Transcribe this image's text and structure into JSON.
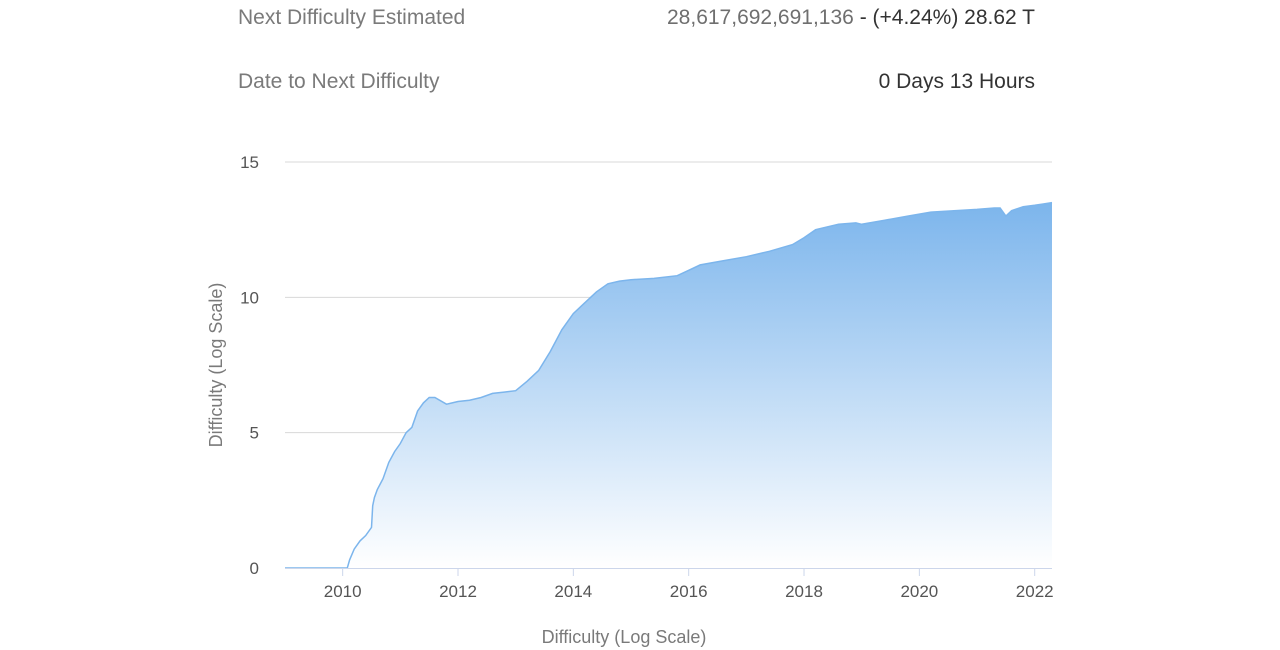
{
  "stats": {
    "next_difficulty_label": "Next Difficulty Estimated",
    "next_difficulty_value": "28,617,692,691,136",
    "next_difficulty_sep": " - ",
    "next_difficulty_change": "(+4.24%) 28.62 T",
    "date_label": "Date to Next Difficulty",
    "date_value": "0 Days 13 Hours"
  },
  "colors": {
    "area_top": "#7cb5ec",
    "area_bottom": "#ffffff",
    "line": "#7cb5ec",
    "grid": "#d8d8d8"
  },
  "chart_data": {
    "type": "area",
    "title": "",
    "xlabel": "Difficulty (Log Scale)",
    "ylabel": "Difficulty (Log Scale)",
    "xlim": [
      2009.0,
      2022.3
    ],
    "ylim": [
      0,
      15
    ],
    "x_ticks": [
      "2010",
      "2012",
      "2014",
      "2016",
      "2018",
      "2020",
      "2022"
    ],
    "y_ticks": [
      "0",
      "5",
      "10",
      "15"
    ],
    "grid": true,
    "legend": "none",
    "series": [
      {
        "x": [
          2009.0,
          2009.5,
          2010.08,
          2010.12,
          2010.2,
          2010.3,
          2010.4,
          2010.5,
          2010.52,
          2010.55,
          2010.6,
          2010.7,
          2010.8,
          2010.9,
          2011.0,
          2011.1,
          2011.2,
          2011.3,
          2011.4,
          2011.5,
          2011.6,
          2011.8,
          2011.9,
          2012.0,
          2012.2,
          2012.4,
          2012.6,
          2012.8,
          2013.0,
          2013.2,
          2013.4,
          2013.6,
          2013.8,
          2014.0,
          2014.2,
          2014.4,
          2014.6,
          2014.8,
          2015.0,
          2015.4,
          2015.8,
          2016.0,
          2016.2,
          2016.6,
          2017.0,
          2017.4,
          2017.8,
          2018.0,
          2018.2,
          2018.6,
          2018.9,
          2019.0,
          2019.4,
          2019.8,
          2020.2,
          2020.6,
          2021.0,
          2021.3,
          2021.4,
          2021.5,
          2021.6,
          2021.8,
          2022.0,
          2022.15,
          2022.3
        ],
        "y": [
          0.0,
          0.0,
          0.0,
          0.3,
          0.7,
          1.0,
          1.2,
          1.5,
          2.3,
          2.6,
          2.9,
          3.3,
          3.9,
          4.3,
          4.6,
          5.0,
          5.2,
          5.8,
          6.1,
          6.3,
          6.3,
          6.05,
          6.1,
          6.15,
          6.2,
          6.3,
          6.45,
          6.5,
          6.55,
          6.9,
          7.3,
          8.0,
          8.8,
          9.4,
          9.8,
          10.2,
          10.5,
          10.6,
          10.65,
          10.7,
          10.8,
          11.0,
          11.2,
          11.35,
          11.5,
          11.7,
          11.95,
          12.2,
          12.5,
          12.7,
          12.75,
          12.7,
          12.85,
          13.0,
          13.15,
          13.2,
          13.25,
          13.3,
          13.3,
          13.0,
          13.2,
          13.35,
          13.4,
          13.45,
          13.5
        ]
      }
    ]
  }
}
